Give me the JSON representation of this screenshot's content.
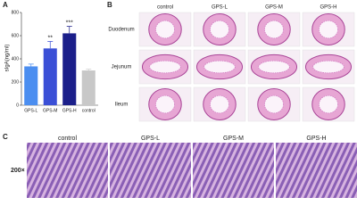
{
  "panel_a": {
    "label": "A"
  },
  "chart_data": {
    "type": "bar",
    "y_label": "sIgA(ng/ml)",
    "categories": [
      "GPS-L",
      "GPS-M",
      "GPS-H",
      "control"
    ],
    "values": [
      335,
      490,
      620,
      300
    ],
    "errors": [
      20,
      60,
      60,
      10
    ],
    "colors": [
      "#4b8ef0",
      "#3a4fd6",
      "#1b1f8a",
      "#c8c8c8"
    ],
    "annotations": [
      {
        "category": "GPS-M",
        "label": "**"
      },
      {
        "category": "GPS-H",
        "label": "***"
      }
    ],
    "ylim": [
      0,
      800
    ],
    "yticks": [
      0,
      200,
      400,
      600,
      800
    ]
  },
  "panel_b": {
    "label": "B",
    "columns": [
      "control",
      "GPS-L",
      "GPS-M",
      "GPS-H"
    ],
    "rows": [
      "Duodenum",
      "Jejunum",
      "Ileum"
    ]
  },
  "panel_c": {
    "label": "C",
    "columns": [
      "control",
      "GPS-L",
      "GPS-M",
      "GPS-H"
    ],
    "magnification": "200×"
  }
}
